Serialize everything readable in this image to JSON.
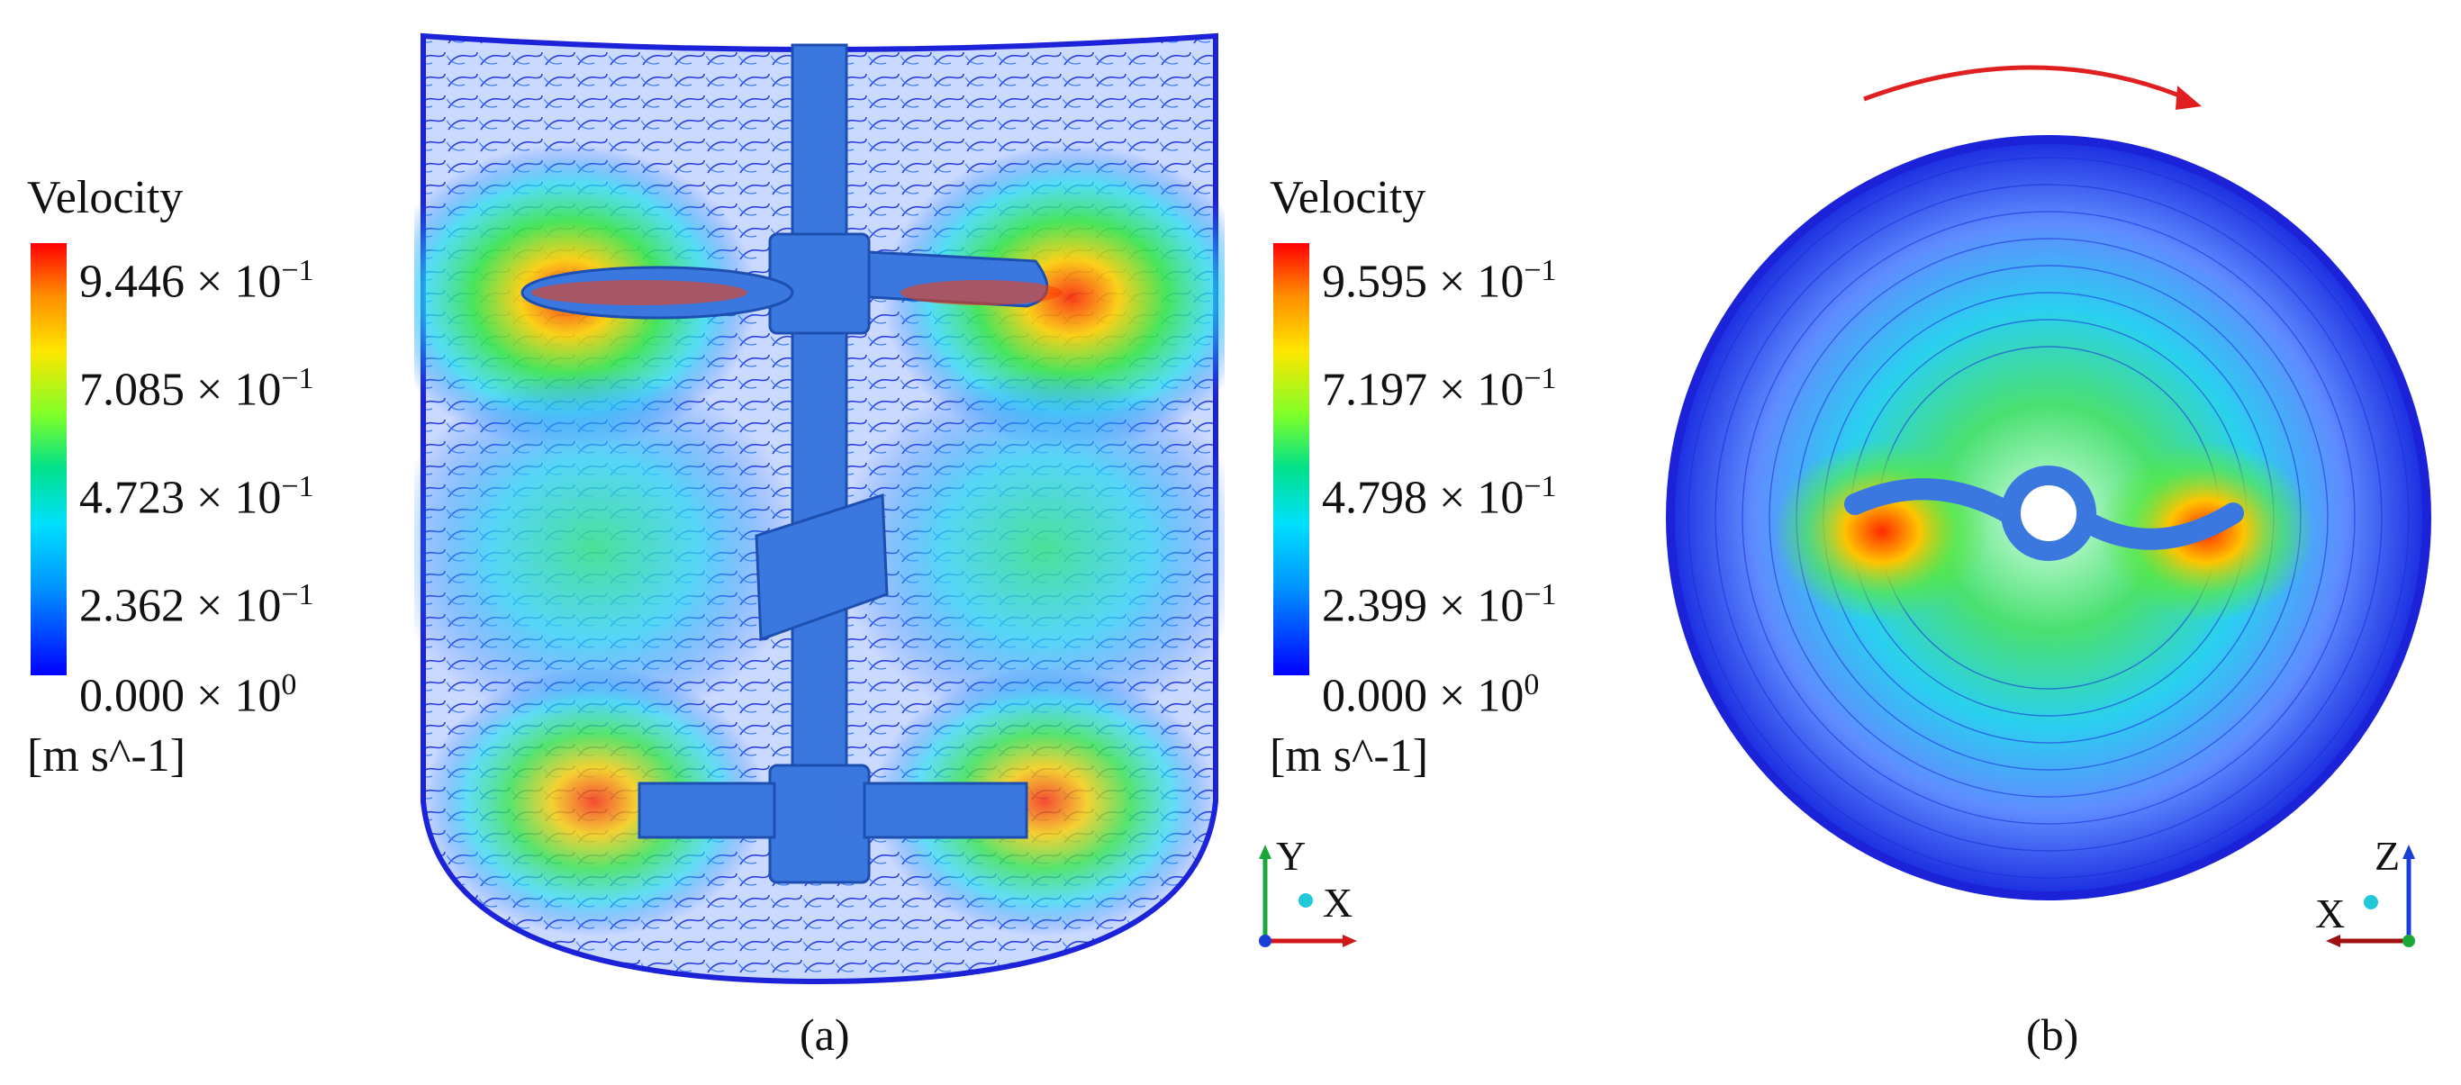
{
  "legend_a": {
    "title": "Velocity",
    "ticks": [
      {
        "mant": "9.446 × 10",
        "exp": "−1"
      },
      {
        "mant": "7.085 × 10",
        "exp": "−1"
      },
      {
        "mant": "4.723 × 10",
        "exp": "−1"
      },
      {
        "mant": "2.362 × 10",
        "exp": "−1"
      },
      {
        "mant": "0.000 × 10",
        "exp": "0"
      }
    ],
    "unit": "[m s^-1]"
  },
  "legend_b": {
    "title": "Velocity",
    "ticks": [
      {
        "mant": "9.595 × 10",
        "exp": "−1"
      },
      {
        "mant": "7.197 × 10",
        "exp": "−1"
      },
      {
        "mant": "4.798 × 10",
        "exp": "−1"
      },
      {
        "mant": "2.399 × 10",
        "exp": "−1"
      },
      {
        "mant": "0.000 × 10",
        "exp": "0"
      }
    ],
    "unit": "[m s^-1]"
  },
  "panel_labels": {
    "a": "(a)",
    "b": "(b)"
  },
  "axes_a": {
    "up": "Y",
    "right": "X"
  },
  "axes_b": {
    "up": "Z",
    "left": "X"
  },
  "colors": {
    "impeller": "#3a78e0",
    "arrow": "#e02020",
    "low": "#0000ff",
    "high": "#ff0000"
  }
}
